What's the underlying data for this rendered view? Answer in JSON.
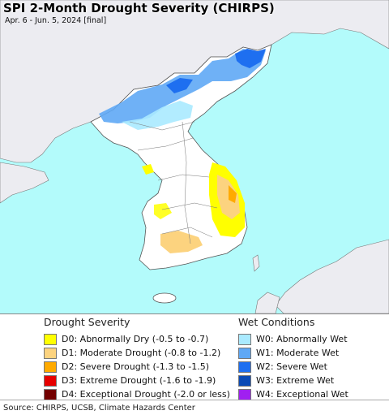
{
  "title": "SPI 2-Month Drought Severity (CHIRPS)",
  "subtitle": "Apr. 6 - Jun. 5, 2024 [final]",
  "map_colors": {
    "sea": "#b3fbfb",
    "land_outside": "#ececf1",
    "land_korea": "#ffffff",
    "border": "#555555"
  },
  "legend": {
    "drought_heading": "Drought Severity",
    "drought_items": [
      {
        "label": "D0: Abnormally Dry (-0.5 to -0.7)",
        "color": "#ffff00"
      },
      {
        "label": "D1: Moderate Drought (-0.8 to -1.2)",
        "color": "#fcd37f"
      },
      {
        "label": "D2: Severe Drought (-1.3 to -1.5)",
        "color": "#ffaa00"
      },
      {
        "label": "D3: Extreme Drought (-1.6 to -1.9)",
        "color": "#e60000"
      },
      {
        "label": "D4: Exceptional Drought (-2.0 or less)",
        "color": "#730000"
      }
    ],
    "wet_heading": "Wet Conditions",
    "wet_items": [
      {
        "label": "W0: Abnormally Wet",
        "color": "#aaeaff"
      },
      {
        "label": "W1: Moderate Wet",
        "color": "#5fa8f5"
      },
      {
        "label": "W2: Severe Wet",
        "color": "#1e6ff0"
      },
      {
        "label": "W3: Extreme Wet",
        "color": "#0a4ab5"
      },
      {
        "label": "W4: Exceptional Wet",
        "color": "#a020f0"
      }
    ]
  },
  "source": "Source: CHIRPS, UCSB, Climate Hazards Center"
}
